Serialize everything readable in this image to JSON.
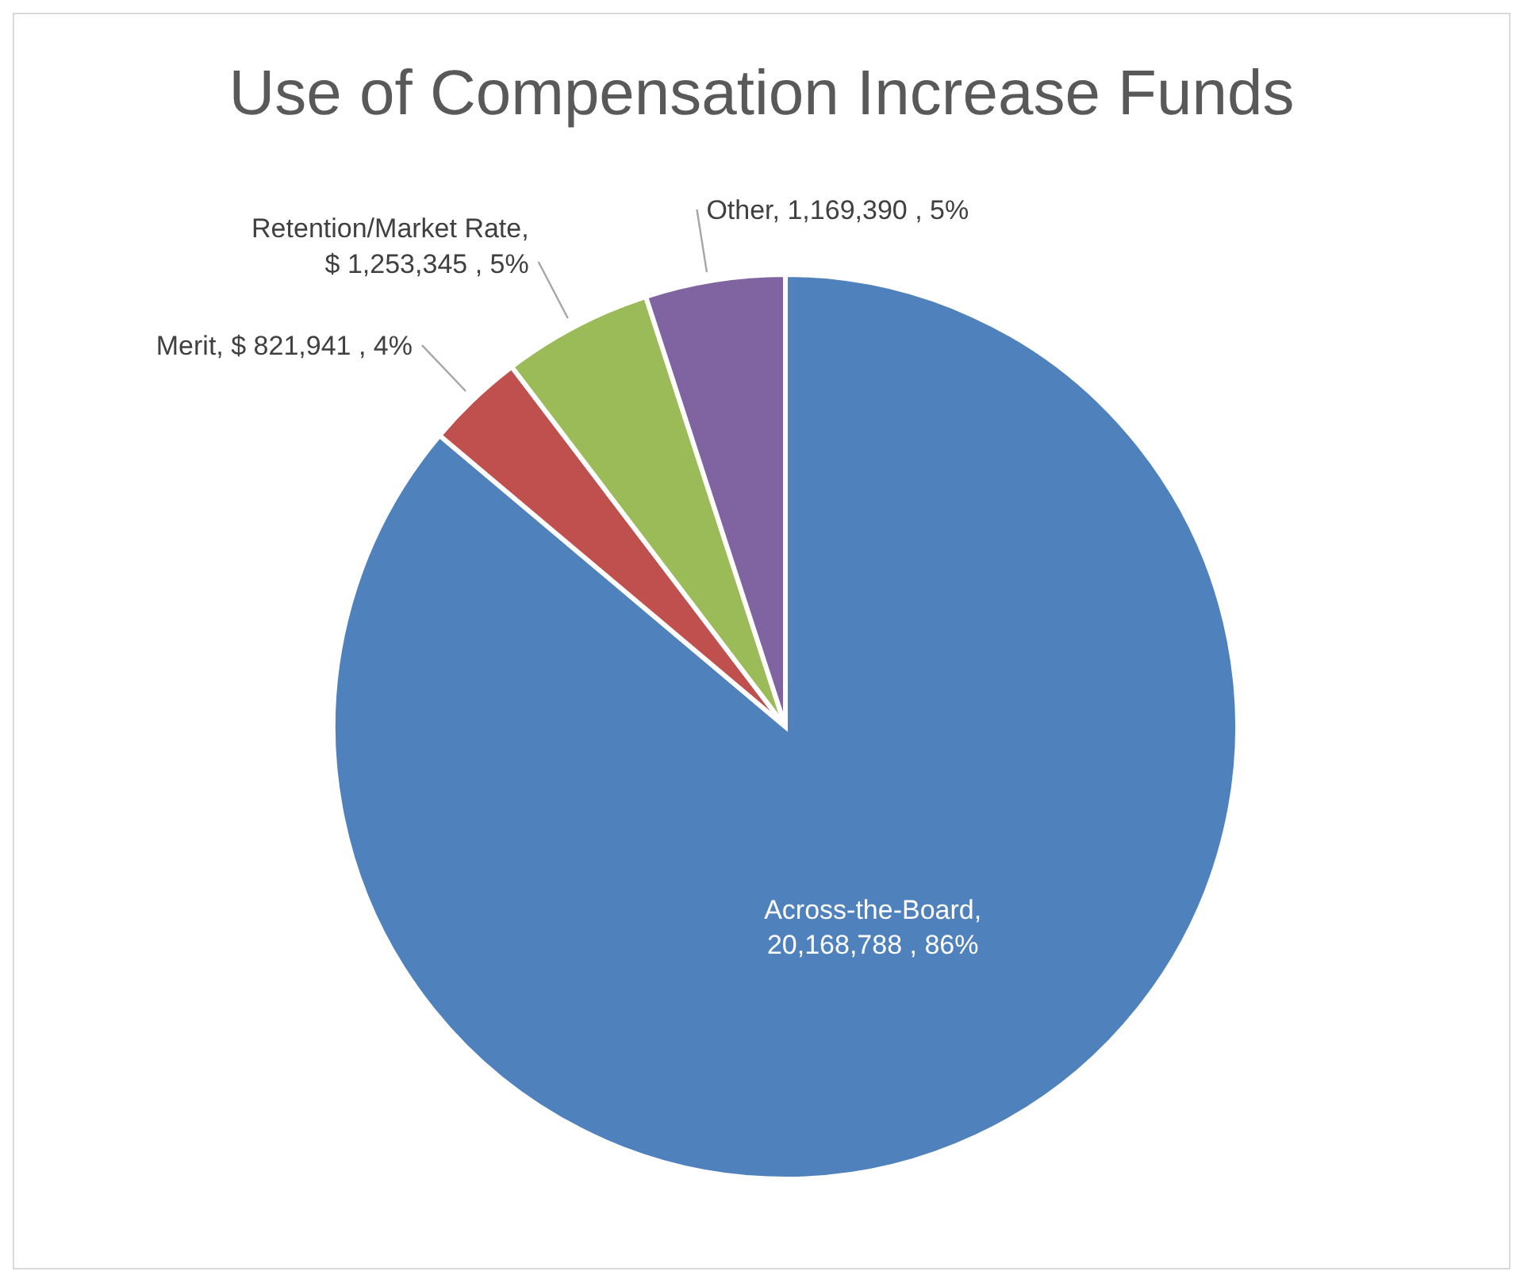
{
  "chart_data": {
    "type": "pie",
    "title": "Use of Compensation Increase Funds",
    "categories": [
      "Across-the-Board",
      "Merit",
      "Retention/Market Rate",
      "Other"
    ],
    "values": [
      20168788,
      821941,
      1253345,
      1169390
    ],
    "value_labels": [
      ", 20,168,788 , 86%",
      ", $ 821,941 , 4%",
      ", $ 1,253,345 , 5%",
      ",  1,169,390 , 5%"
    ],
    "colors": [
      "#4f81bd",
      "#c0504d",
      "#9bbb59",
      "#8064a2"
    ],
    "legend": false
  }
}
